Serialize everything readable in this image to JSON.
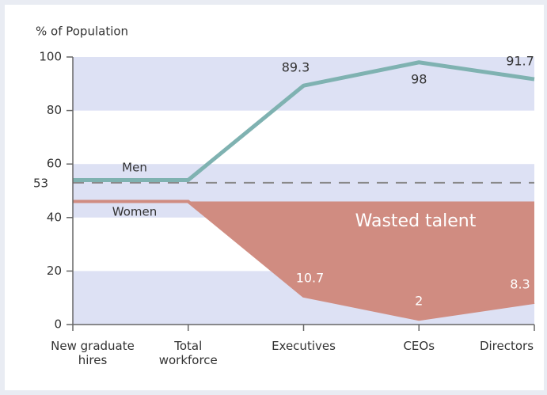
{
  "chart_data": {
    "type": "line",
    "y_axis_label": "% of Population",
    "categories": [
      "New graduate hires",
      "Total workforce",
      "Executives",
      "CEOs",
      "Directors"
    ],
    "series": [
      {
        "name": "Men",
        "color": "#7fb2b1",
        "values": [
          54,
          54,
          89.3,
          98,
          91.7
        ],
        "labeled": [
          false,
          false,
          true,
          true,
          true
        ]
      },
      {
        "name": "Women",
        "color": "#d08c81",
        "values": [
          46,
          46,
          10.7,
          2,
          8.3
        ],
        "labeled": [
          false,
          false,
          true,
          true,
          true
        ]
      }
    ],
    "reference_line": 53,
    "area_label": "Wasted talent",
    "ylim": [
      0,
      100
    ],
    "yticks": [
      0,
      20,
      40,
      60,
      80,
      100
    ],
    "bands": true
  }
}
